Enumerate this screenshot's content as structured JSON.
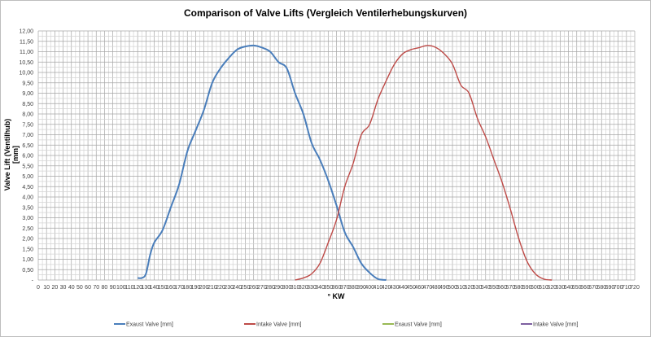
{
  "chart_data": {
    "type": "line",
    "title": "Comparison of Valve Lifts (Vergleich Ventilerhebungskurven)",
    "xlabel": "° KW",
    "ylabel_lines": [
      "Valve Lift (Ventilhub)",
      "[mm]"
    ],
    "xlim": [
      0,
      720
    ],
    "ylim": [
      0,
      12
    ],
    "x_tick_step": 10,
    "y_tick_step": 0.5,
    "y_tick_labels": [
      "-",
      "0,50",
      "1,00",
      "1,50",
      "2,00",
      "2,50",
      "3,00",
      "3,50",
      "4,00",
      "4,50",
      "5,00",
      "5,50",
      "6,00",
      "6,50",
      "7,00",
      "7,50",
      "8,00",
      "8,50",
      "9,00",
      "9,50",
      "10,00",
      "10,50",
      "11,00",
      "11,50",
      "12,00"
    ],
    "grid": true,
    "legend_position": "bottom",
    "series": [
      {
        "name": "Exaust Valve [mm]",
        "color": "#4a7ebb",
        "x": [
          120,
          125,
          130,
          135,
          140,
          150,
          160,
          170,
          180,
          190,
          200,
          210,
          220,
          230,
          240,
          250,
          260,
          270,
          280,
          290,
          300,
          310,
          320,
          330,
          340,
          350,
          360,
          370,
          380,
          390,
          400,
          410,
          420
        ],
        "y": [
          0.1,
          0.1,
          0.3,
          1.2,
          1.8,
          2.4,
          3.5,
          4.6,
          6.2,
          7.2,
          8.2,
          9.5,
          10.2,
          10.7,
          11.1,
          11.25,
          11.3,
          11.2,
          11.0,
          10.5,
          10.2,
          9.0,
          8.0,
          6.6,
          5.8,
          4.8,
          3.6,
          2.3,
          1.6,
          0.8,
          0.35,
          0.05,
          0.0
        ]
      },
      {
        "name": "Intake Valve [mm]",
        "color": "#be4b48",
        "x": [
          310,
          320,
          330,
          340,
          350,
          360,
          370,
          380,
          390,
          400,
          410,
          420,
          430,
          440,
          450,
          460,
          470,
          480,
          490,
          500,
          510,
          520,
          530,
          540,
          550,
          560,
          570,
          580,
          590,
          600,
          610,
          620
        ],
        "y": [
          0.0,
          0.1,
          0.3,
          0.8,
          1.8,
          2.9,
          4.5,
          5.6,
          7.0,
          7.5,
          8.7,
          9.6,
          10.4,
          10.9,
          11.1,
          11.2,
          11.3,
          11.2,
          10.9,
          10.4,
          9.4,
          9.0,
          7.8,
          6.9,
          5.8,
          4.7,
          3.4,
          2.0,
          0.9,
          0.3,
          0.05,
          0.0
        ]
      },
      {
        "name": "Exaust Valve [mm]",
        "color": "#98b954",
        "x": [],
        "y": []
      },
      {
        "name": "Intake Valve [mm]",
        "color": "#7d60a0",
        "x": [],
        "y": []
      }
    ]
  }
}
